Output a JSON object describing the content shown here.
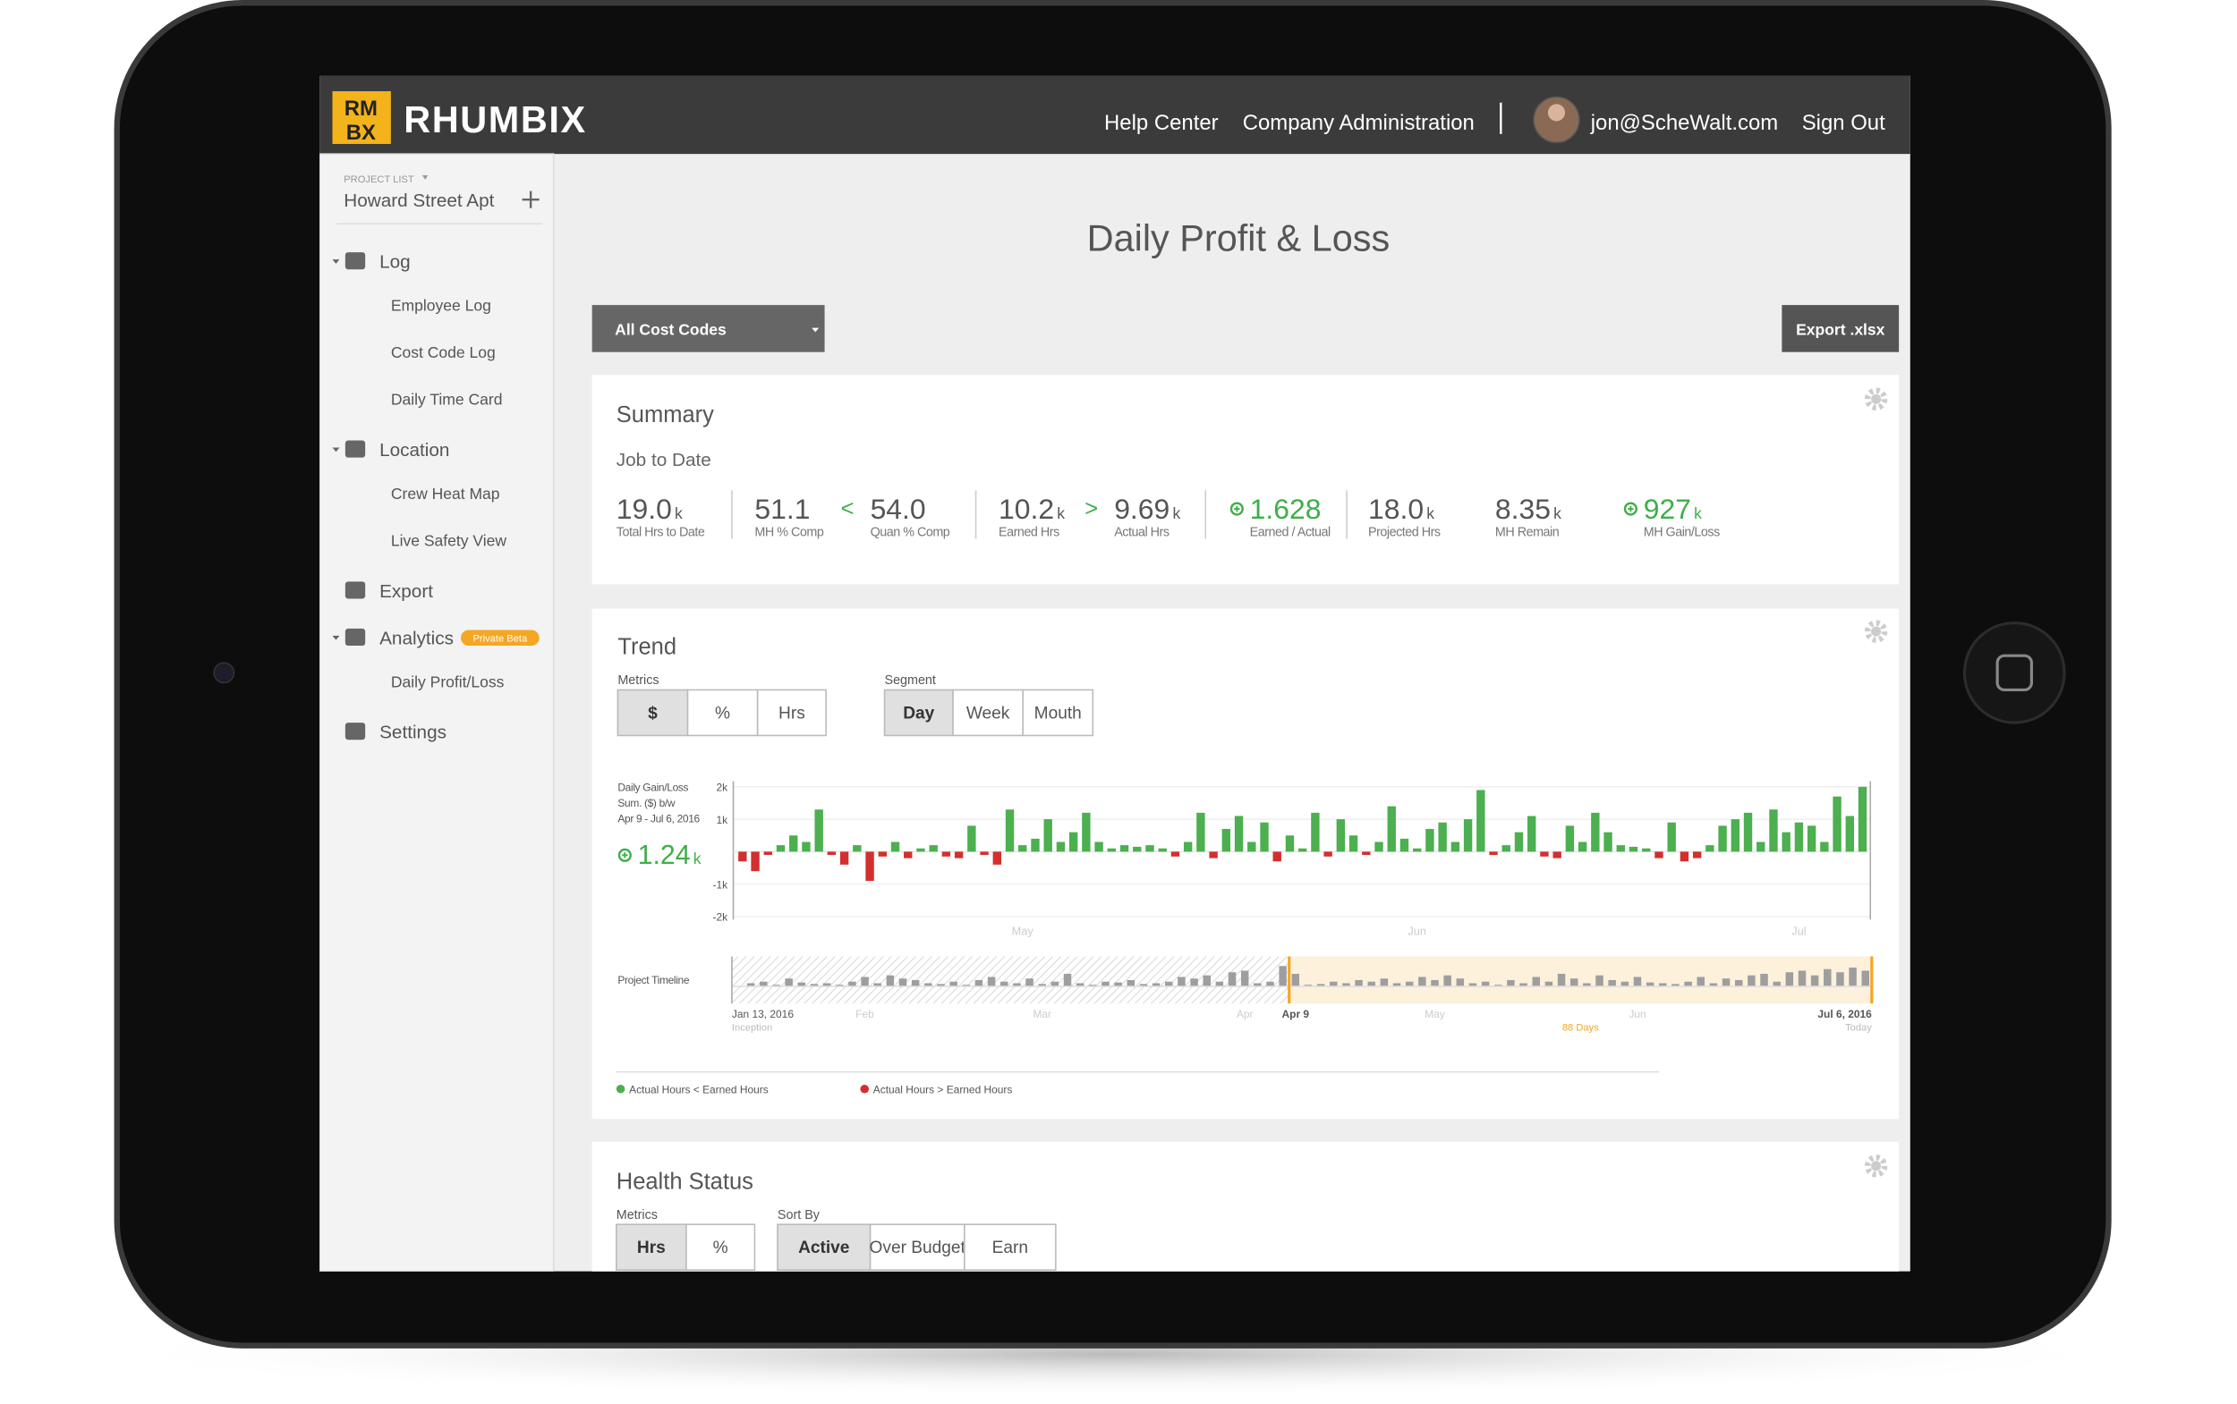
{
  "header": {
    "logo": [
      "RM",
      "BX"
    ],
    "brand": "RHUMBIX",
    "nav": [
      "Help Center",
      "Company Administration"
    ],
    "user": "jon@ScheWalt.com",
    "sign_out": "Sign Out"
  },
  "sidebar": {
    "project_list": "PROJECT LIST",
    "project": "Howard Street Apt",
    "menu": [
      {
        "label": "Log",
        "children": [
          "Employee Log",
          "Cost Code Log",
          "Daily Time Card"
        ]
      },
      {
        "label": "Location",
        "children": [
          "Crew Heat Map",
          "Live Safety View"
        ]
      },
      {
        "label": "Export"
      },
      {
        "label": "Analytics",
        "badge": "Private Beta",
        "children": [
          "Daily Profit/Loss"
        ]
      },
      {
        "label": "Settings"
      }
    ]
  },
  "page": {
    "title": "Daily Profit & Loss",
    "filter": "All Cost Codes",
    "export": "Export .xlsx"
  },
  "summary": {
    "title": "Summary",
    "subtitle": "Job to Date",
    "comparators": [
      "<",
      ">"
    ],
    "metrics": [
      {
        "value": "19.0",
        "unit": "k",
        "label": "Total Hrs to Date"
      },
      {
        "value": "51.1",
        "label": "MH % Comp"
      },
      {
        "value": "54.0",
        "label": "Quan % Comp"
      },
      {
        "value": "10.2",
        "unit": "k",
        "label": "Earned Hrs"
      },
      {
        "value": "9.69",
        "unit": "k",
        "label": "Actual Hrs"
      },
      {
        "value": "1.628",
        "label": "Earned / Actual",
        "status": "gain"
      },
      {
        "value": "18.0",
        "unit": "k",
        "label": "Projected Hrs"
      },
      {
        "value": "8.35",
        "unit": "k",
        "label": "MH Remain"
      },
      {
        "value": "927",
        "unit": "k",
        "label": "MH Gain/Loss",
        "status": "gain"
      }
    ]
  },
  "trend": {
    "title": "Trend",
    "metrics": {
      "label": "Metrics",
      "options": [
        "$",
        "%",
        "Hrs"
      ],
      "selected": 0
    },
    "segment": {
      "label": "Segment",
      "options": [
        "Day",
        "Week",
        "Mouth"
      ],
      "selected": 0
    }
  },
  "chart_data": [
    {
      "type": "bar",
      "annotation": [
        "Daily Gain/Loss",
        "Sum. ($) b/w",
        "Apr 9 - Jul 6, 2016"
      ],
      "total": {
        "value": "1.24",
        "unit": "k"
      },
      "categories": [
        null,
        null,
        null,
        null,
        null,
        null,
        null,
        null,
        null,
        null,
        null,
        null,
        null,
        null,
        null,
        null,
        null,
        null,
        null,
        null,
        null,
        null,
        "May",
        null,
        null,
        null,
        null,
        null,
        null,
        null,
        null,
        null,
        null,
        null,
        null,
        null,
        null,
        null,
        null,
        null,
        null,
        null,
        null,
        null,
        null,
        null,
        null,
        null,
        null,
        null,
        null,
        null,
        null,
        "Jun",
        null,
        null,
        null,
        null,
        null,
        null,
        null,
        null,
        null,
        null,
        null,
        null,
        null,
        null,
        null,
        null,
        null,
        null,
        null,
        null,
        null,
        null,
        null,
        null,
        null,
        null,
        null,
        null,
        null,
        "Jul",
        null,
        null,
        null,
        null,
        null
      ],
      "values": [
        -300,
        -600,
        -100,
        200,
        500,
        300,
        1300,
        -100,
        -400,
        200,
        -900,
        -150,
        300,
        -200,
        100,
        200,
        -150,
        -200,
        800,
        -100,
        -400,
        1300,
        200,
        400,
        1000,
        300,
        600,
        1200,
        300,
        100,
        200,
        150,
        200,
        100,
        -150,
        300,
        1200,
        -200,
        700,
        1100,
        300,
        900,
        -300,
        500,
        100,
        1200,
        -150,
        1000,
        500,
        -100,
        300,
        1400,
        400,
        100,
        700,
        900,
        300,
        1000,
        1900,
        -100,
        200,
        600,
        1100,
        -150,
        -200,
        800,
        300,
        1200,
        600,
        200,
        150,
        100,
        -200,
        900,
        -300,
        -200,
        200,
        800,
        1000,
        1200,
        300,
        1300,
        600,
        900,
        800,
        300,
        1700,
        1100,
        2000
      ],
      "ylim": [
        -2000,
        2000
      ],
      "yticks": [
        {
          "value": 2000,
          "label": "2k"
        },
        {
          "value": 1000,
          "label": "1k"
        },
        {
          "value": -1000,
          "label": "-1k"
        },
        {
          "value": -2000,
          "label": "-2k"
        }
      ],
      "grid": true,
      "legend": [
        {
          "name": "Actual Hours < Earned Hours",
          "color": "#4caf50"
        },
        {
          "name": "Actual Hours > Earned Hours",
          "color": "#d32f2f"
        }
      ]
    },
    {
      "type": "bar",
      "title": "Project Timeline",
      "categories": [
        "Jan 13, 2016",
        null,
        null,
        null,
        null,
        null,
        null,
        null,
        null,
        null,
        "Feb",
        null,
        null,
        null,
        null,
        null,
        null,
        null,
        null,
        null,
        null,
        null,
        null,
        null,
        "Mar",
        null,
        null,
        null,
        null,
        null,
        null,
        null,
        null,
        null,
        null,
        null,
        null,
        null,
        null,
        null,
        "Apr",
        null,
        null,
        null,
        "Apr 9",
        null,
        null,
        null,
        null,
        null,
        null,
        null,
        null,
        null,
        null,
        "May",
        null,
        null,
        null,
        null,
        null,
        null,
        null,
        null,
        null,
        null,
        null,
        null,
        null,
        null,
        null,
        "Jun",
        null,
        null,
        null,
        null,
        null,
        null,
        null,
        null,
        null,
        null,
        null,
        null,
        null,
        null,
        null,
        null,
        null,
        "Jul 6, 2016"
      ],
      "values": [
        0,
        200,
        300,
        100,
        500,
        250,
        150,
        200,
        100,
        300,
        600,
        200,
        700,
        500,
        400,
        200,
        150,
        300,
        100,
        400,
        600,
        300,
        200,
        500,
        150,
        300,
        800,
        200,
        100,
        300,
        250,
        400,
        150,
        200,
        300,
        600,
        500,
        700,
        300,
        900,
        1000,
        200,
        300,
        1300,
        800,
        100,
        150,
        300,
        200,
        400,
        300,
        500,
        200,
        300,
        600,
        400,
        700,
        500,
        200,
        300,
        100,
        400,
        200,
        600,
        300,
        800,
        500,
        200,
        700,
        400,
        300,
        600,
        250,
        200,
        150,
        300,
        600,
        200,
        500,
        400,
        700,
        800,
        300,
        900,
        1000,
        700,
        1100,
        900,
        1200,
        1000
      ],
      "ylim": [
        0,
        2000
      ],
      "color": "#9e9e9e",
      "selected_range": [
        44,
        89
      ],
      "selected_color": "#f5a623",
      "annotations": {
        "start": "Inception",
        "end": "Today",
        "range": "88 Days"
      }
    }
  ],
  "health": {
    "title": "Health Status",
    "metrics": {
      "label": "Metrics",
      "options": [
        "Hrs",
        "%"
      ],
      "selected": 0
    },
    "sort": {
      "label": "Sort By",
      "options": [
        "Active",
        "Over Budget",
        "Earn"
      ],
      "selected": 0
    }
  }
}
